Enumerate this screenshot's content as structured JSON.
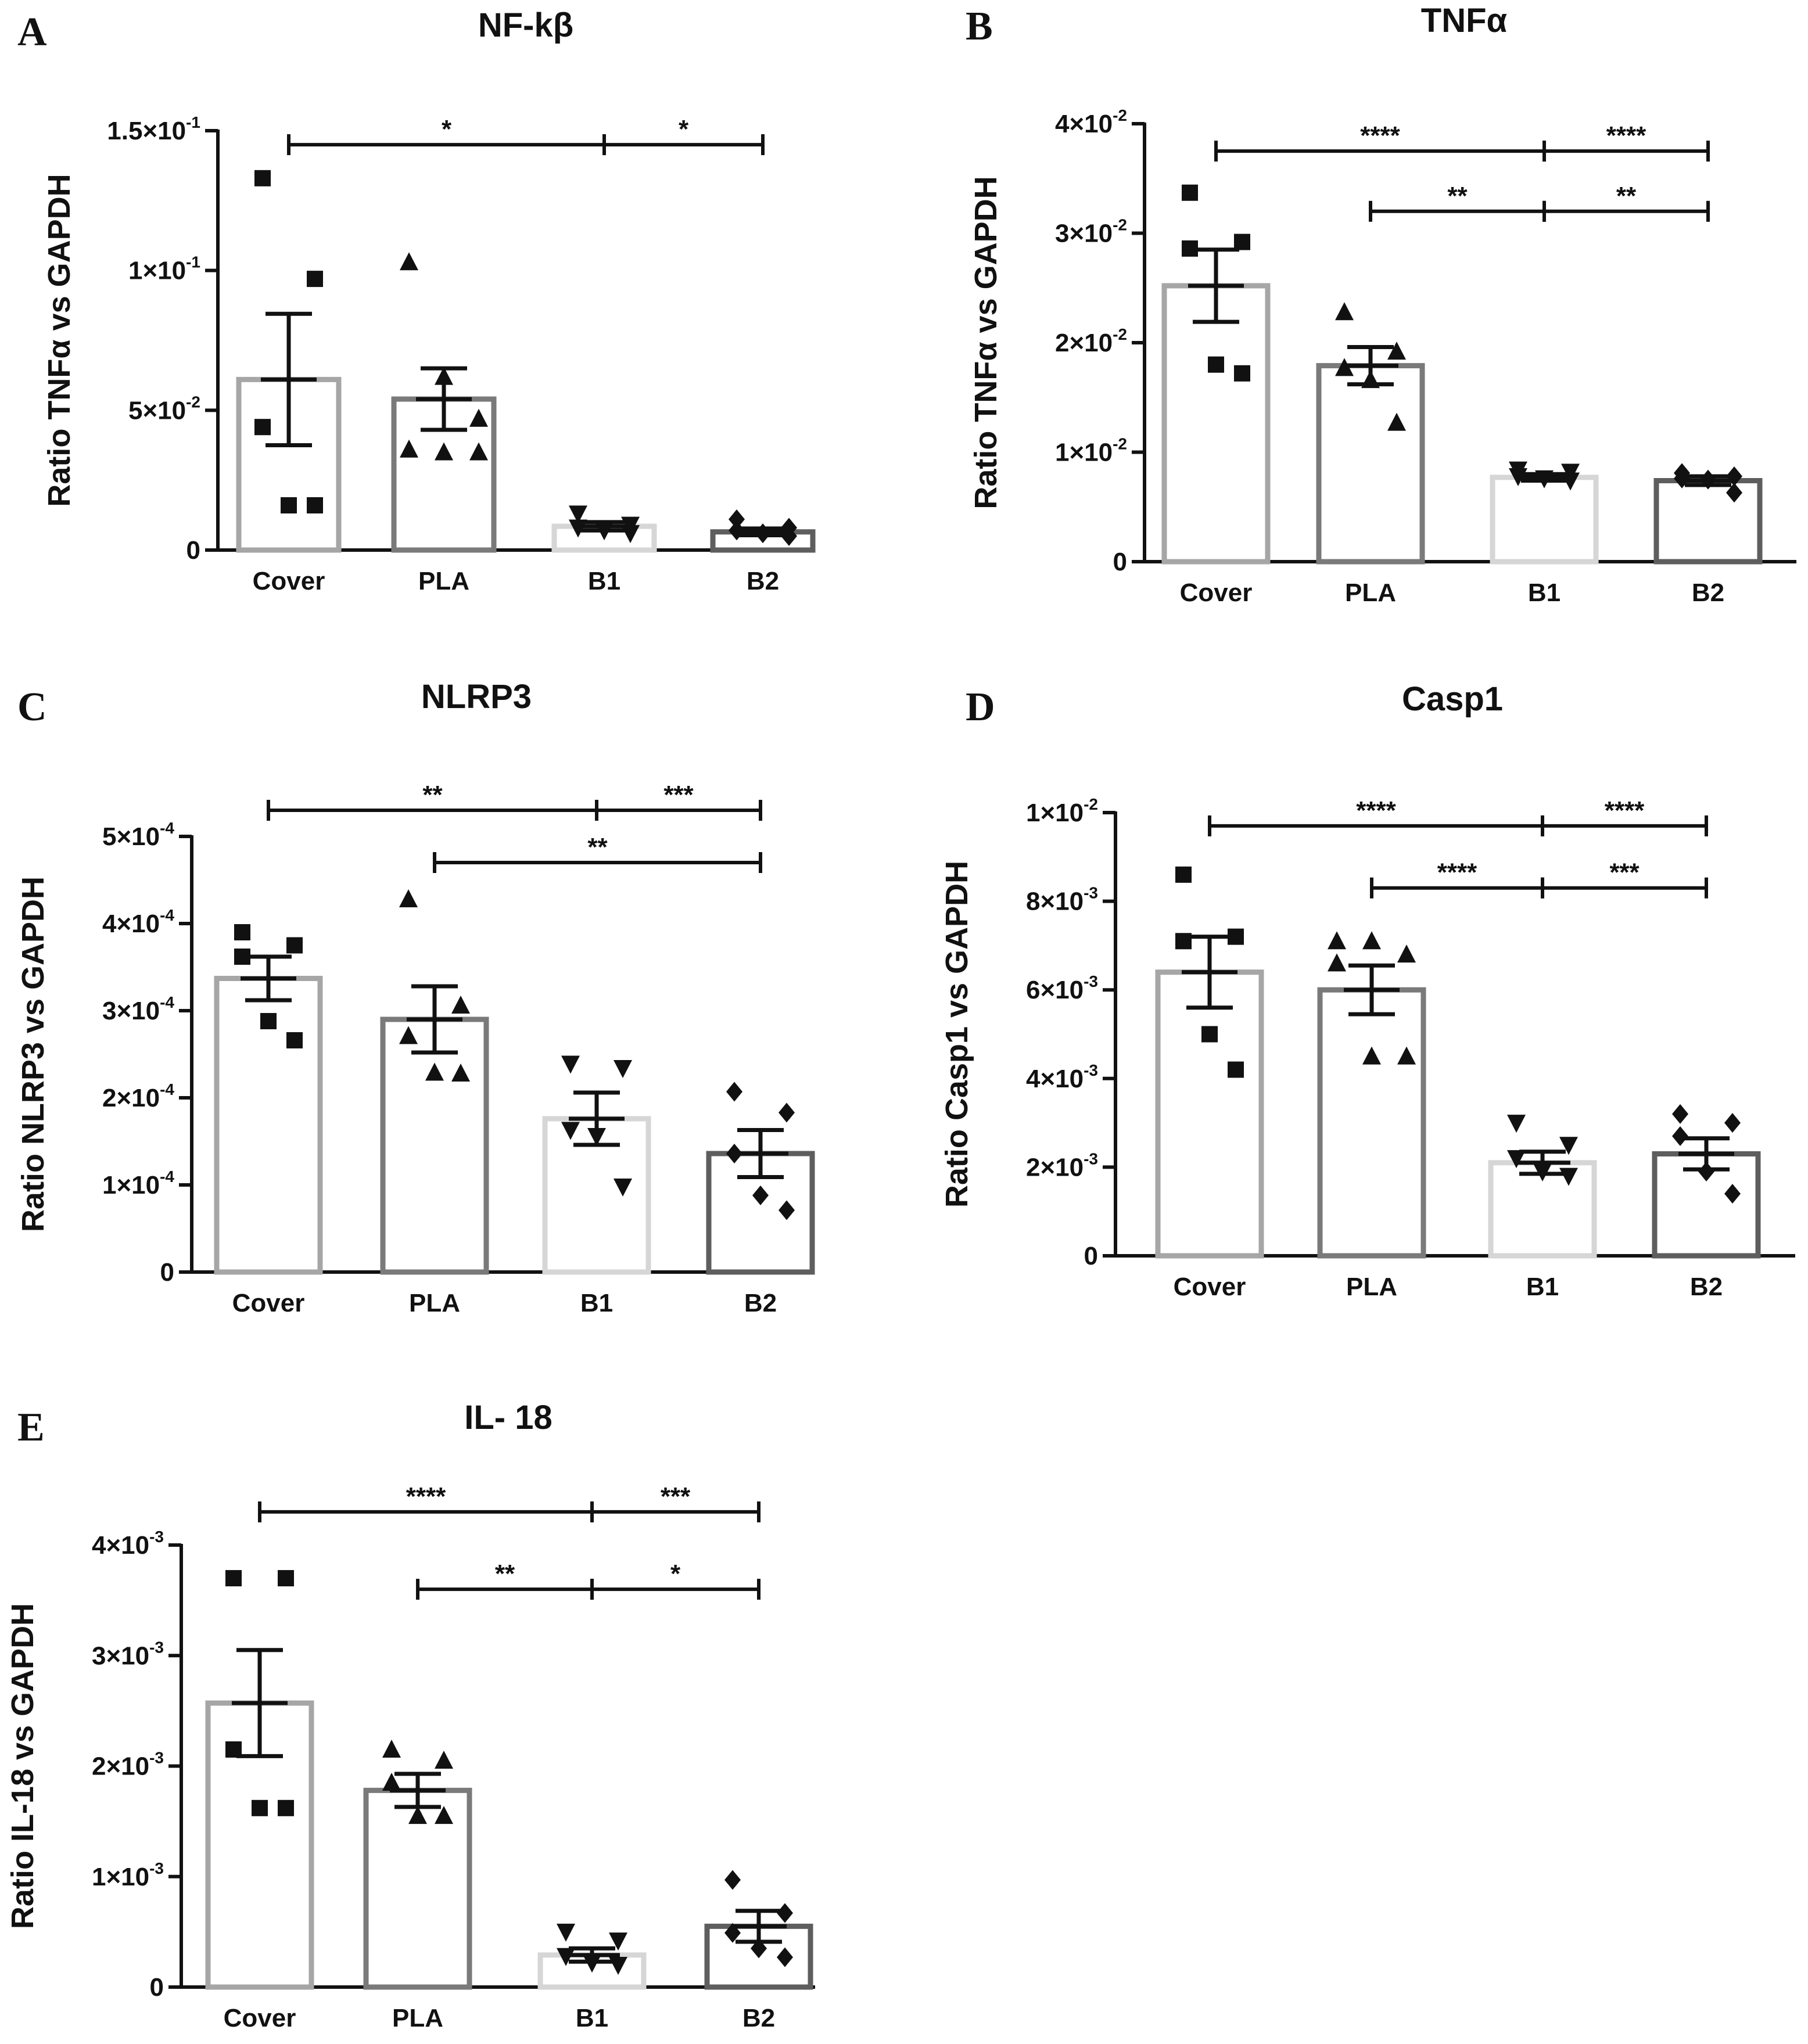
{
  "colors": {
    "axis": "#111111",
    "bars": [
      "#a6a6a6",
      "#7a7a7a",
      "#d6d6d6",
      "#5e5e5e"
    ]
  },
  "chart_data": [
    {
      "panel": "A",
      "type": "bar",
      "title": "NF-kβ",
      "ylabel": "Ratio TNFα vs GAPDH",
      "categories": [
        "Cover",
        "PLA",
        "B1",
        "B2"
      ],
      "ylim": [
        0,
        0.15
      ],
      "ticks": [
        0,
        0.05,
        0.1,
        0.15
      ],
      "tick_mantissa": [
        "0",
        "5×10",
        "1×10",
        "1.5×10"
      ],
      "tick_exponent": [
        "",
        "-2",
        "-1",
        "-1"
      ],
      "series": [
        {
          "name": "Cover",
          "mean": 0.061,
          "sem": 0.0235,
          "marker": "square",
          "points": [
            0.133,
            0.097,
            0.044,
            0.016,
            0.016
          ]
        },
        {
          "name": "PLA",
          "mean": 0.054,
          "sem": 0.011,
          "marker": "triangle-up",
          "points": [
            0.103,
            0.062,
            0.047,
            0.036,
            0.035,
            0.035
          ]
        },
        {
          "name": "B1",
          "mean": 0.0085,
          "sem": 0.0015,
          "marker": "triangle-down",
          "points": [
            0.013,
            0.009,
            0.008,
            0.007,
            0.006
          ]
        },
        {
          "name": "B2",
          "mean": 0.0065,
          "sem": 0.0012,
          "marker": "diamond",
          "points": [
            0.011,
            0.008,
            0.007,
            0.006,
            0.005
          ]
        }
      ],
      "significance": [
        {
          "from": 0,
          "to": 2,
          "y": 0.145,
          "label": "*"
        },
        {
          "from": 2,
          "to": 3,
          "y": 0.145,
          "label": "*"
        }
      ]
    },
    {
      "panel": "B",
      "type": "bar",
      "title": "TNFα",
      "ylabel": "Ratio TNFα vs GAPDH",
      "categories": [
        "Cover",
        "PLA",
        "B1",
        "B2"
      ],
      "ylim": [
        0,
        0.04
      ],
      "ticks": [
        0,
        0.01,
        0.02,
        0.03,
        0.04
      ],
      "tick_mantissa": [
        "0",
        "1×10",
        "2×10",
        "3×10",
        "4×10"
      ],
      "tick_exponent": [
        "",
        "-2",
        "-2",
        "-2",
        "-2"
      ],
      "series": [
        {
          "name": "Cover",
          "mean": 0.0252,
          "sem": 0.0033,
          "marker": "square",
          "points": [
            0.0337,
            0.0292,
            0.0286,
            0.018,
            0.0172
          ]
        },
        {
          "name": "PLA",
          "mean": 0.0179,
          "sem": 0.0017,
          "marker": "triangle-up",
          "points": [
            0.0228,
            0.0192,
            0.0177,
            0.0166,
            0.0127
          ]
        },
        {
          "name": "B1",
          "mean": 0.0077,
          "sem": 0.0003,
          "marker": "triangle-down",
          "points": [
            0.0084,
            0.0082,
            0.0078,
            0.0076,
            0.0074
          ]
        },
        {
          "name": "B2",
          "mean": 0.0074,
          "sem": 0.0004,
          "marker": "diamond",
          "points": [
            0.0081,
            0.0078,
            0.0076,
            0.0075,
            0.0063
          ]
        }
      ],
      "significance": [
        {
          "from": 0,
          "to": 2,
          "y": 0.0375,
          "label": "****"
        },
        {
          "from": 2,
          "to": 3,
          "y": 0.0375,
          "label": "****"
        },
        {
          "from": 1,
          "to": 2,
          "y": 0.032,
          "label": "**"
        },
        {
          "from": 2,
          "to": 3,
          "y": 0.032,
          "label": "**"
        }
      ]
    },
    {
      "panel": "C",
      "type": "bar",
      "title": "NLRP3",
      "ylabel": "Ratio NLRP3 vs GAPDH",
      "categories": [
        "Cover",
        "PLA",
        "B1",
        "B2"
      ],
      "ylim": [
        0,
        0.0005
      ],
      "ticks": [
        0,
        0.0001,
        0.0002,
        0.0003,
        0.0004,
        0.0005
      ],
      "tick_mantissa": [
        "0",
        "1×10",
        "2×10",
        "3×10",
        "4×10",
        "5×10"
      ],
      "tick_exponent": [
        "",
        "-4",
        "-4",
        "-4",
        "-4",
        "-4"
      ],
      "series": [
        {
          "name": "Cover",
          "mean": 0.000337,
          "sem": 2.5e-05,
          "marker": "square",
          "points": [
            0.00039,
            0.000375,
            0.000362,
            0.000288,
            0.000266
          ]
        },
        {
          "name": "PLA",
          "mean": 0.00029,
          "sem": 3.8e-05,
          "marker": "triangle-up",
          "points": [
            0.000428,
            0.000306,
            0.000271,
            0.000229,
            0.000228
          ]
        },
        {
          "name": "B1",
          "mean": 0.000176,
          "sem": 3e-05,
          "marker": "triangle-down",
          "points": [
            0.000239,
            0.000234,
            0.000163,
            0.000156,
            9.8e-05
          ]
        },
        {
          "name": "B2",
          "mean": 0.000136,
          "sem": 2.7e-05,
          "marker": "diamond",
          "points": [
            0.000207,
            0.000183,
            0.000136,
            8.8e-05,
            7.1e-05
          ]
        }
      ],
      "significance": [
        {
          "from": 0,
          "to": 2,
          "y": 0.00053,
          "label": "**"
        },
        {
          "from": 2,
          "to": 3,
          "y": 0.00053,
          "label": "***"
        },
        {
          "from": 1,
          "to": 3,
          "y": 0.00047,
          "label": "**"
        }
      ]
    },
    {
      "panel": "D",
      "type": "bar",
      "title": "Casp1",
      "ylabel": "Ratio Casp1 vs GAPDH",
      "categories": [
        "Cover",
        "PLA",
        "B1",
        "B2"
      ],
      "ylim": [
        0,
        0.01
      ],
      "ticks": [
        0,
        0.002,
        0.004,
        0.006,
        0.008,
        0.01
      ],
      "tick_mantissa": [
        "0",
        "2×10",
        "4×10",
        "6×10",
        "8×10",
        "1×10"
      ],
      "tick_exponent": [
        "",
        "-3",
        "-3",
        "-3",
        "-3",
        "-2"
      ],
      "series": [
        {
          "name": "Cover",
          "mean": 0.0064,
          "sem": 0.0008,
          "marker": "square",
          "points": [
            0.0086,
            0.0072,
            0.0071,
            0.005,
            0.0042
          ]
        },
        {
          "name": "PLA",
          "mean": 0.006,
          "sem": 0.00055,
          "marker": "triangle-up",
          "points": [
            0.0071,
            0.0071,
            0.0068,
            0.0066,
            0.0045,
            0.0045
          ]
        },
        {
          "name": "B1",
          "mean": 0.0021,
          "sem": 0.00025,
          "marker": "triangle-down",
          "points": [
            0.003,
            0.0025,
            0.0022,
            0.0019,
            0.0018
          ]
        },
        {
          "name": "B2",
          "mean": 0.0023,
          "sem": 0.00035,
          "marker": "diamond",
          "points": [
            0.0032,
            0.003,
            0.0027,
            0.0019,
            0.0014
          ]
        }
      ],
      "significance": [
        {
          "from": 0,
          "to": 2,
          "y": 0.0097,
          "label": "****"
        },
        {
          "from": 2,
          "to": 3,
          "y": 0.0097,
          "label": "****"
        },
        {
          "from": 1,
          "to": 2,
          "y": 0.0083,
          "label": "****"
        },
        {
          "from": 2,
          "to": 3,
          "y": 0.0083,
          "label": "***"
        }
      ]
    },
    {
      "panel": "E",
      "type": "bar",
      "title": "IL- 18",
      "ylabel": "Ratio IL-18 vs GAPDH",
      "categories": [
        "Cover",
        "PLA",
        "B1",
        "B2"
      ],
      "ylim": [
        0,
        0.004
      ],
      "ticks": [
        0,
        0.001,
        0.002,
        0.003,
        0.004
      ],
      "tick_mantissa": [
        "0",
        "1×10",
        "2×10",
        "3×10",
        "4×10"
      ],
      "tick_exponent": [
        "",
        "-3",
        "-3",
        "-3",
        "-3"
      ],
      "series": [
        {
          "name": "Cover",
          "mean": 0.00257,
          "sem": 0.00048,
          "marker": "square",
          "points": [
            0.0037,
            0.0037,
            0.00215,
            0.00162,
            0.00162
          ]
        },
        {
          "name": "PLA",
          "mean": 0.00178,
          "sem": 0.00015,
          "marker": "triangle-up",
          "points": [
            0.00215,
            0.00205,
            0.00185,
            0.00155,
            0.00155
          ]
        },
        {
          "name": "B1",
          "mean": 0.00029,
          "sem": 6e-05,
          "marker": "triangle-down",
          "points": [
            0.0005,
            0.00042,
            0.00028,
            0.00022,
            0.0002
          ]
        },
        {
          "name": "B2",
          "mean": 0.00055,
          "sem": 0.00014,
          "marker": "diamond",
          "points": [
            0.00097,
            0.00067,
            0.00049,
            0.00035,
            0.00027
          ]
        }
      ],
      "significance": [
        {
          "from": 0,
          "to": 2,
          "y": 0.0043,
          "label": "****"
        },
        {
          "from": 2,
          "to": 3,
          "y": 0.0043,
          "label": "***"
        },
        {
          "from": 1,
          "to": 2,
          "y": 0.0036,
          "label": "**"
        },
        {
          "from": 2,
          "to": 3,
          "y": 0.0036,
          "label": "*"
        }
      ]
    }
  ]
}
